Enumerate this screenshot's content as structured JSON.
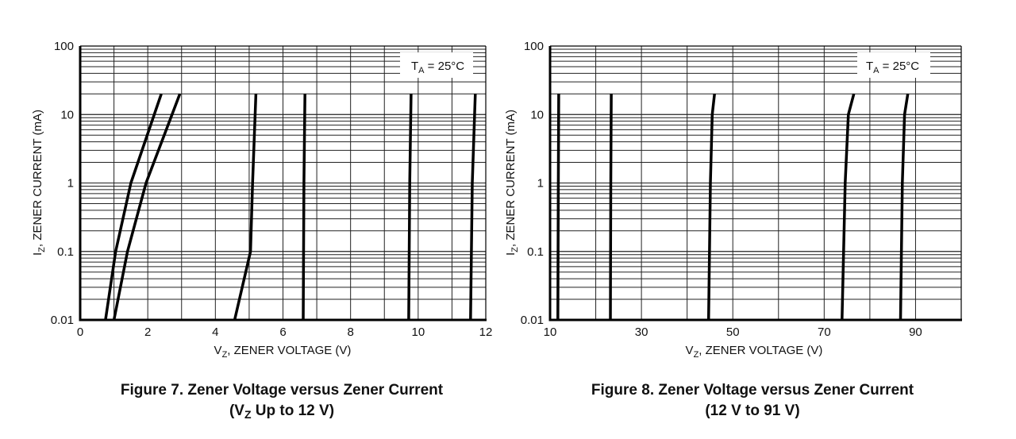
{
  "chart_data": [
    {
      "type": "line",
      "title_line1": "Figure 7. Zener Voltage versus Zener Current",
      "title_line2": {
        "open": "(V",
        "sub": "Z",
        "rest": " Up to 12 V)"
      },
      "xlabel": {
        "main": "V",
        "sub": "Z",
        "rest": ", ZENER VOLTAGE (V)"
      },
      "ylabel": {
        "main": "I",
        "sub": "Z",
        "rest": ", ZENER CURRENT (mA)"
      },
      "legend": {
        "main": "T",
        "sub": "A",
        "rest": " = 25°C",
        "placement": "top-right"
      },
      "xlim": [
        0,
        12
      ],
      "ylim": [
        0.01,
        100
      ],
      "yscale": "log",
      "grid": true,
      "x_grid_step": 1,
      "x_ticks": [
        0,
        2,
        4,
        6,
        8,
        10,
        12
      ],
      "x_tick_labels": [
        "0",
        "2",
        "4",
        "6",
        "8",
        "10",
        "12"
      ],
      "y_ticks": [
        0.01,
        0.1,
        1,
        10,
        100
      ],
      "y_tick_labels": [
        "0.01",
        "0.1",
        "1",
        "10",
        "100"
      ],
      "series": [
        {
          "x": [
            0.75,
            1.05,
            1.5,
            2.4
          ],
          "y": [
            0.01,
            0.1,
            1,
            20
          ]
        },
        {
          "x": [
            1.0,
            1.4,
            1.95,
            2.95
          ],
          "y": [
            0.01,
            0.1,
            1,
            20
          ]
        },
        {
          "x": [
            4.57,
            5.04,
            5.1,
            5.2
          ],
          "y": [
            0.01,
            0.1,
            1,
            20
          ]
        },
        {
          "x": [
            6.6,
            6.62,
            6.65
          ],
          "y": [
            0.01,
            1,
            20
          ]
        },
        {
          "x": [
            9.72,
            9.75,
            9.79
          ],
          "y": [
            0.01,
            1,
            20
          ]
        },
        {
          "x": [
            11.55,
            11.6,
            11.69
          ],
          "y": [
            0.01,
            1,
            20
          ]
        }
      ]
    },
    {
      "type": "line",
      "title_line1": "Figure 8. Zener Voltage versus Zener Current",
      "title_line2": {
        "open": "(12 V to 91 V)",
        "sub": "",
        "rest": ""
      },
      "xlabel": {
        "main": "V",
        "sub": "Z",
        "rest": ", ZENER VOLTAGE (V)"
      },
      "ylabel": {
        "main": "I",
        "sub": "Z",
        "rest": ", ZENER CURRENT (mA)"
      },
      "legend": {
        "main": "T",
        "sub": "A",
        "rest": " = 25°C",
        "placement": "top-right"
      },
      "xlim": [
        10,
        100
      ],
      "ylim": [
        0.01,
        100
      ],
      "yscale": "log",
      "grid": true,
      "x_grid_step": 10,
      "x_ticks": [
        10,
        30,
        50,
        70,
        90
      ],
      "x_tick_labels": [
        "10",
        "30",
        "50",
        "70",
        "90"
      ],
      "y_ticks": [
        0.01,
        0.1,
        1,
        10,
        100
      ],
      "y_tick_labels": [
        "0.01",
        "0.1",
        "1",
        "10",
        "100"
      ],
      "series": [
        {
          "x": [
            11.7,
            11.8,
            11.9
          ],
          "y": [
            0.01,
            1,
            20
          ]
        },
        {
          "x": [
            23.2,
            23.3,
            23.4
          ],
          "y": [
            0.01,
            1,
            20
          ]
        },
        {
          "x": [
            44.7,
            45.1,
            45.5,
            46.0
          ],
          "y": [
            0.01,
            1,
            10,
            20
          ]
        },
        {
          "x": [
            73.9,
            74.6,
            75.3,
            76.5
          ],
          "y": [
            0.01,
            1,
            10,
            20
          ]
        },
        {
          "x": [
            86.7,
            87.1,
            87.6,
            88.3
          ],
          "y": [
            0.01,
            1,
            10,
            20
          ]
        }
      ]
    }
  ]
}
